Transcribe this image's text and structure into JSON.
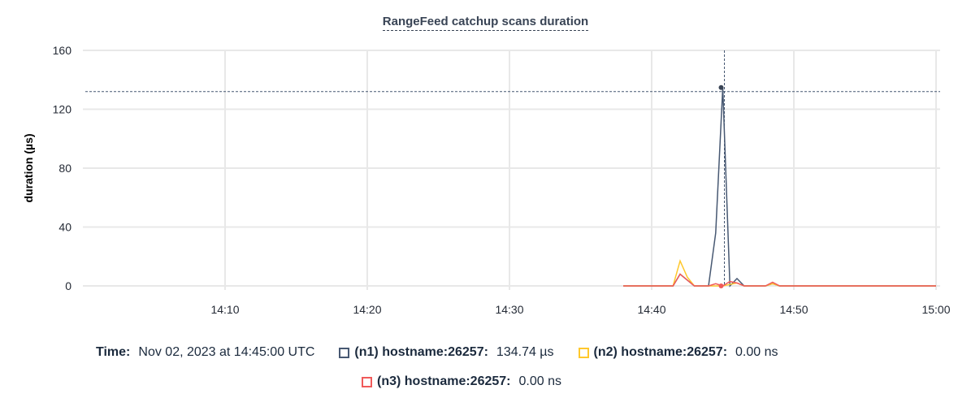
{
  "chart_data": {
    "type": "line",
    "title": "RangeFeed catchup scans duration",
    "ylabel": "duration (µs)",
    "xlabel": "",
    "xlim": [
      "14:00",
      "15:00"
    ],
    "ylim": [
      0,
      160
    ],
    "yticks": [
      "0",
      "40",
      "80",
      "120",
      "160"
    ],
    "xticks": [
      "14:10",
      "14:20",
      "14:30",
      "14:40",
      "14:50",
      "15:00"
    ],
    "grid": true,
    "x": [
      "14:38:00",
      "14:38:30",
      "14:39:00",
      "14:39:30",
      "14:40:00",
      "14:40:30",
      "14:41:00",
      "14:41:30",
      "14:42:00",
      "14:42:30",
      "14:43:00",
      "14:43:30",
      "14:44:00",
      "14:44:30",
      "14:45:00",
      "14:45:30",
      "14:46:00",
      "14:46:30",
      "14:47:00",
      "14:47:30",
      "14:48:00",
      "14:48:30",
      "14:49:00",
      "14:49:30",
      "14:50:00",
      "14:50:30",
      "14:51:00",
      "14:51:30",
      "14:52:00",
      "14:52:30",
      "14:53:00",
      "14:53:30",
      "14:54:00",
      "14:54:30",
      "14:55:00",
      "14:55:30",
      "14:56:00",
      "14:56:30",
      "14:57:00",
      "14:57:30",
      "14:58:00",
      "14:58:30",
      "14:59:00",
      "14:59:30",
      "15:00:00"
    ],
    "series": [
      {
        "name": "(n1) hostname:26257",
        "color": "#475872",
        "values": [
          0,
          0,
          0,
          0,
          0,
          0,
          0,
          0,
          8,
          4,
          0,
          0,
          0,
          36,
          134.74,
          0,
          5,
          0,
          0,
          0,
          0,
          1.5,
          0,
          0,
          0,
          0,
          0,
          0,
          0,
          0,
          0,
          0,
          0,
          0,
          0,
          0,
          0,
          0,
          0,
          0,
          0,
          0,
          0,
          0,
          0
        ]
      },
      {
        "name": "(n2) hostname:26257",
        "color": "#ffc82c",
        "values": [
          0,
          0,
          0,
          0,
          0,
          0,
          0,
          0,
          17,
          6,
          0,
          0,
          0,
          0,
          0,
          1,
          2,
          0,
          0,
          0,
          0,
          1.5,
          0,
          0,
          0,
          0,
          0,
          0,
          0,
          0,
          0,
          0,
          0,
          0,
          0,
          0,
          0,
          0,
          0,
          0,
          0,
          0,
          0,
          0,
          0
        ]
      },
      {
        "name": "(n3) hostname:26257",
        "color": "#f05a5a",
        "values": [
          0,
          0,
          0,
          0,
          0,
          0,
          0,
          0,
          8,
          4,
          0,
          0,
          0,
          1.5,
          0,
          3,
          2,
          0,
          0,
          0,
          0,
          2.5,
          0,
          0,
          0,
          0,
          0,
          0,
          0,
          0,
          0,
          0,
          0,
          0,
          0,
          0,
          0,
          0,
          0,
          0,
          0,
          0,
          0,
          0,
          0
        ]
      }
    ],
    "hover": {
      "x": "14:45:00",
      "y": 134.74
    }
  },
  "legend": {
    "time_label": "Time:",
    "time_value": "Nov 02, 2023 at 14:45:00 UTC",
    "items": [
      {
        "label": "(n1) hostname:26257:",
        "value": "134.74 µs"
      },
      {
        "label": "(n2) hostname:26257:",
        "value": "0.00 ns"
      },
      {
        "label": "(n3) hostname:26257:",
        "value": "0.00 ns"
      }
    ]
  }
}
